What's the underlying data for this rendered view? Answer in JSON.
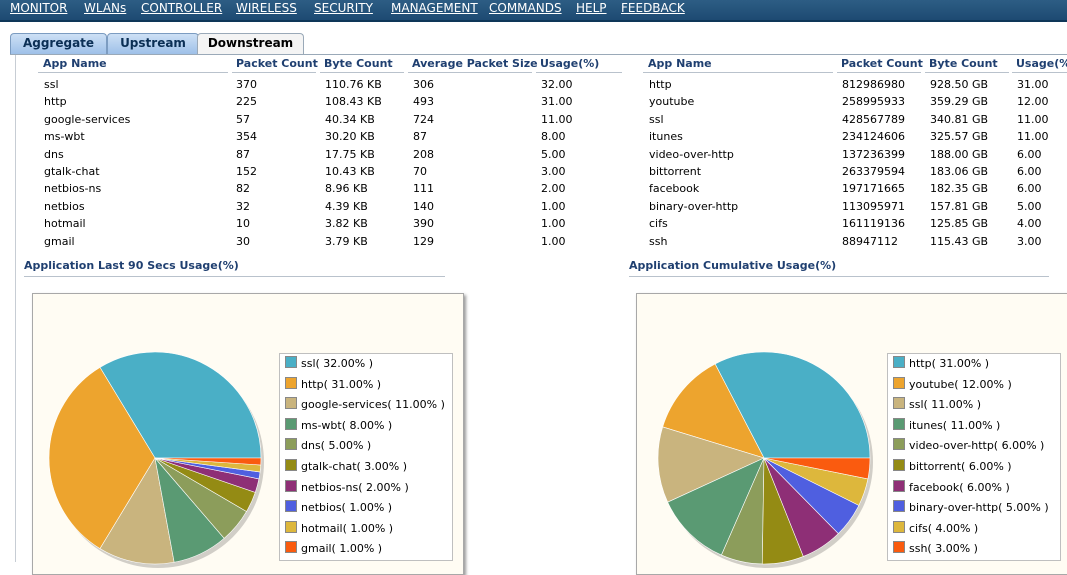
{
  "menu": [
    "MONITOR",
    "WLANs",
    "CONTROLLER",
    "WIRELESS",
    "SECURITY",
    "MANAGEMENT",
    "COMMANDS",
    "HELP",
    "FEEDBACK"
  ],
  "tabs": [
    "Aggregate",
    "Upstream",
    "Downstream"
  ],
  "left_table": {
    "headers": [
      "App Name",
      "Packet Count",
      "Byte Count",
      "Average Packet Size",
      "Usage(%)"
    ],
    "rows": [
      [
        "ssl",
        "370",
        "110.76  KB",
        "306",
        "32.00"
      ],
      [
        "http",
        "225",
        "108.43  KB",
        "493",
        "31.00"
      ],
      [
        "google-services",
        "57",
        "40.34  KB",
        "724",
        "11.00"
      ],
      [
        "ms-wbt",
        "354",
        "30.20  KB",
        "87",
        "8.00"
      ],
      [
        "dns",
        "87",
        "17.75  KB",
        "208",
        "5.00"
      ],
      [
        "gtalk-chat",
        "152",
        "10.43  KB",
        "70",
        "3.00"
      ],
      [
        "netbios-ns",
        "82",
        "8.96  KB",
        "111",
        "2.00"
      ],
      [
        "netbios",
        "32",
        "4.39  KB",
        "140",
        "1.00"
      ],
      [
        "hotmail",
        "10",
        "3.82  KB",
        "390",
        "1.00"
      ],
      [
        "gmail",
        "30",
        "3.79  KB",
        "129",
        "1.00"
      ]
    ]
  },
  "right_table": {
    "headers": [
      "App Name",
      "Packet Count",
      "Byte Count",
      "Usage(%)"
    ],
    "rows": [
      [
        "http",
        "812986980",
        "928.50  GB",
        "31.00"
      ],
      [
        "youtube",
        "258995933",
        "359.29  GB",
        "12.00"
      ],
      [
        "ssl",
        "428567789",
        "340.81  GB",
        "11.00"
      ],
      [
        "itunes",
        "234124606",
        "325.57  GB",
        "11.00"
      ],
      [
        "video-over-http",
        "137236399",
        "188.00  GB",
        "6.00"
      ],
      [
        "bittorrent",
        "263379594",
        "183.06  GB",
        "6.00"
      ],
      [
        "facebook",
        "197171665",
        "182.35  GB",
        "6.00"
      ],
      [
        "binary-over-http",
        "113095971",
        "157.81  GB",
        "5.00"
      ],
      [
        "cifs",
        "161119136",
        "125.85  GB",
        "4.00"
      ],
      [
        "ssh",
        "88947112",
        "115.43  GB",
        "3.00"
      ]
    ]
  },
  "left_chart_title": "Application Last 90 Secs Usage(%)",
  "right_chart_title": "Application Cumulative Usage(%)",
  "chart_data": [
    {
      "type": "pie",
      "title": "Application Last 90 Secs Usage(%)",
      "legend": "right",
      "labels": [
        "ssl",
        "http",
        "google-services",
        "ms-wbt",
        "dns",
        "gtalk-chat",
        "netbios-ns",
        "netbios",
        "hotmail",
        "gmail"
      ],
      "legend_labels": [
        "ssl( 32.00% )",
        "http( 31.00% )",
        "google-services( 11.00% )",
        "ms-wbt( 8.00% )",
        "dns( 5.00% )",
        "gtalk-chat( 3.00% )",
        "netbios-ns( 2.00% )",
        "netbios( 1.00% )",
        "hotmail( 1.00% )",
        "gmail( 1.00% )"
      ],
      "values": [
        32,
        31,
        11,
        8,
        5,
        3,
        2,
        1,
        1,
        1
      ],
      "colors": [
        "#4aafc6",
        "#eda42e",
        "#c9b47e",
        "#5a9a73",
        "#8c9d5b",
        "#948b14",
        "#8e2f76",
        "#4f5fe0",
        "#ddb73c",
        "#fa5b0f"
      ]
    },
    {
      "type": "pie",
      "title": "Application Cumulative Usage(%)",
      "legend": "right",
      "labels": [
        "http",
        "youtube",
        "ssl",
        "itunes",
        "video-over-http",
        "bittorrent",
        "facebook",
        "binary-over-http",
        "cifs",
        "ssh"
      ],
      "legend_labels": [
        "http( 31.00% )",
        "youtube( 12.00% )",
        "ssl( 11.00% )",
        "itunes( 11.00% )",
        "video-over-http( 6.00% )",
        "bittorrent( 6.00% )",
        "facebook( 6.00% )",
        "binary-over-http( 5.00% )",
        "cifs( 4.00% )",
        "ssh( 3.00% )"
      ],
      "values": [
        31,
        12,
        11,
        11,
        6,
        6,
        6,
        5,
        4,
        3
      ],
      "colors": [
        "#4aafc6",
        "#eda42e",
        "#c9b47e",
        "#5a9a73",
        "#8c9d5b",
        "#948b14",
        "#8e2f76",
        "#4f5fe0",
        "#ddb73c",
        "#fa5b0f"
      ]
    }
  ]
}
